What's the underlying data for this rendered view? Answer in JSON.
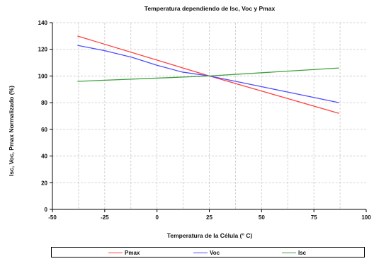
{
  "chart_data": {
    "type": "line",
    "title": "Temperatura dependiendo de Isc, Voc y Pmax",
    "xlabel": "Temperatura de la Célula (° C)",
    "ylabel": "Isc, Voc, Pmax Normalizado (%)",
    "xlim": [
      -50,
      100
    ],
    "ylim": [
      0,
      140
    ],
    "xticks": [
      "-50",
      "-25",
      "0",
      "25",
      "50",
      "75",
      "100"
    ],
    "yticks": [
      "0",
      "20",
      "40",
      "60",
      "80",
      "100",
      "120",
      "140"
    ],
    "grid": true,
    "legend_position": "bottom",
    "series": [
      {
        "name": "Pmax",
        "color": "#ff4040",
        "x": [
          -38,
          25,
          87
        ],
        "y": [
          130,
          100,
          72
        ]
      },
      {
        "name": "Voc",
        "color": "#4d4dff",
        "x": [
          -38,
          -25,
          -12,
          0,
          12,
          25,
          50,
          87
        ],
        "y": [
          123,
          119,
          114,
          108,
          103,
          100,
          92,
          80
        ]
      },
      {
        "name": "Isc",
        "color": "#40a040",
        "x": [
          -38,
          25,
          87
        ],
        "y": [
          96,
          100,
          106
        ]
      }
    ]
  }
}
